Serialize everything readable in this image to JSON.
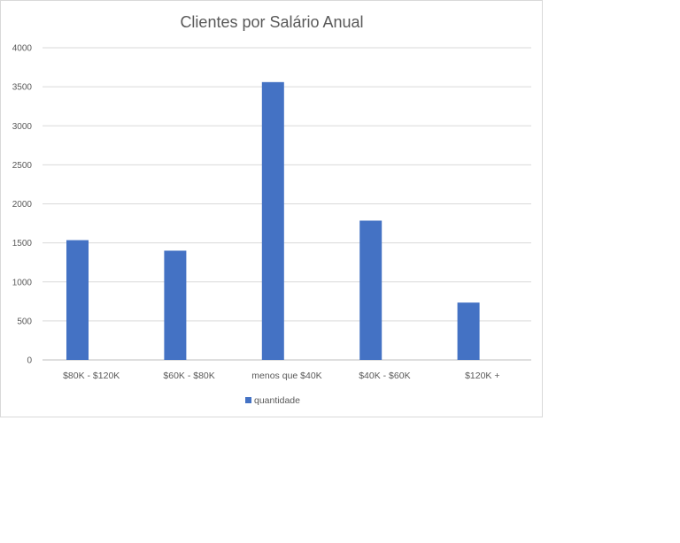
{
  "chart_data": {
    "type": "bar",
    "title": "Clientes por Salário Anual",
    "xlabel": "",
    "ylabel": "",
    "categories": [
      "$80K - $120K",
      "$60K - $80K",
      "menos que $40K",
      "$40K - $60K",
      "$120K +"
    ],
    "series": [
      {
        "name": "quantidade",
        "values": [
          1535,
          1400,
          3560,
          1785,
          735
        ],
        "color": "#4472C4"
      }
    ],
    "ylim": [
      0,
      4000
    ],
    "yticks": [
      0,
      500,
      1000,
      1500,
      2000,
      2500,
      3000,
      3500,
      4000
    ],
    "grid": true,
    "legend_position": "bottom"
  }
}
